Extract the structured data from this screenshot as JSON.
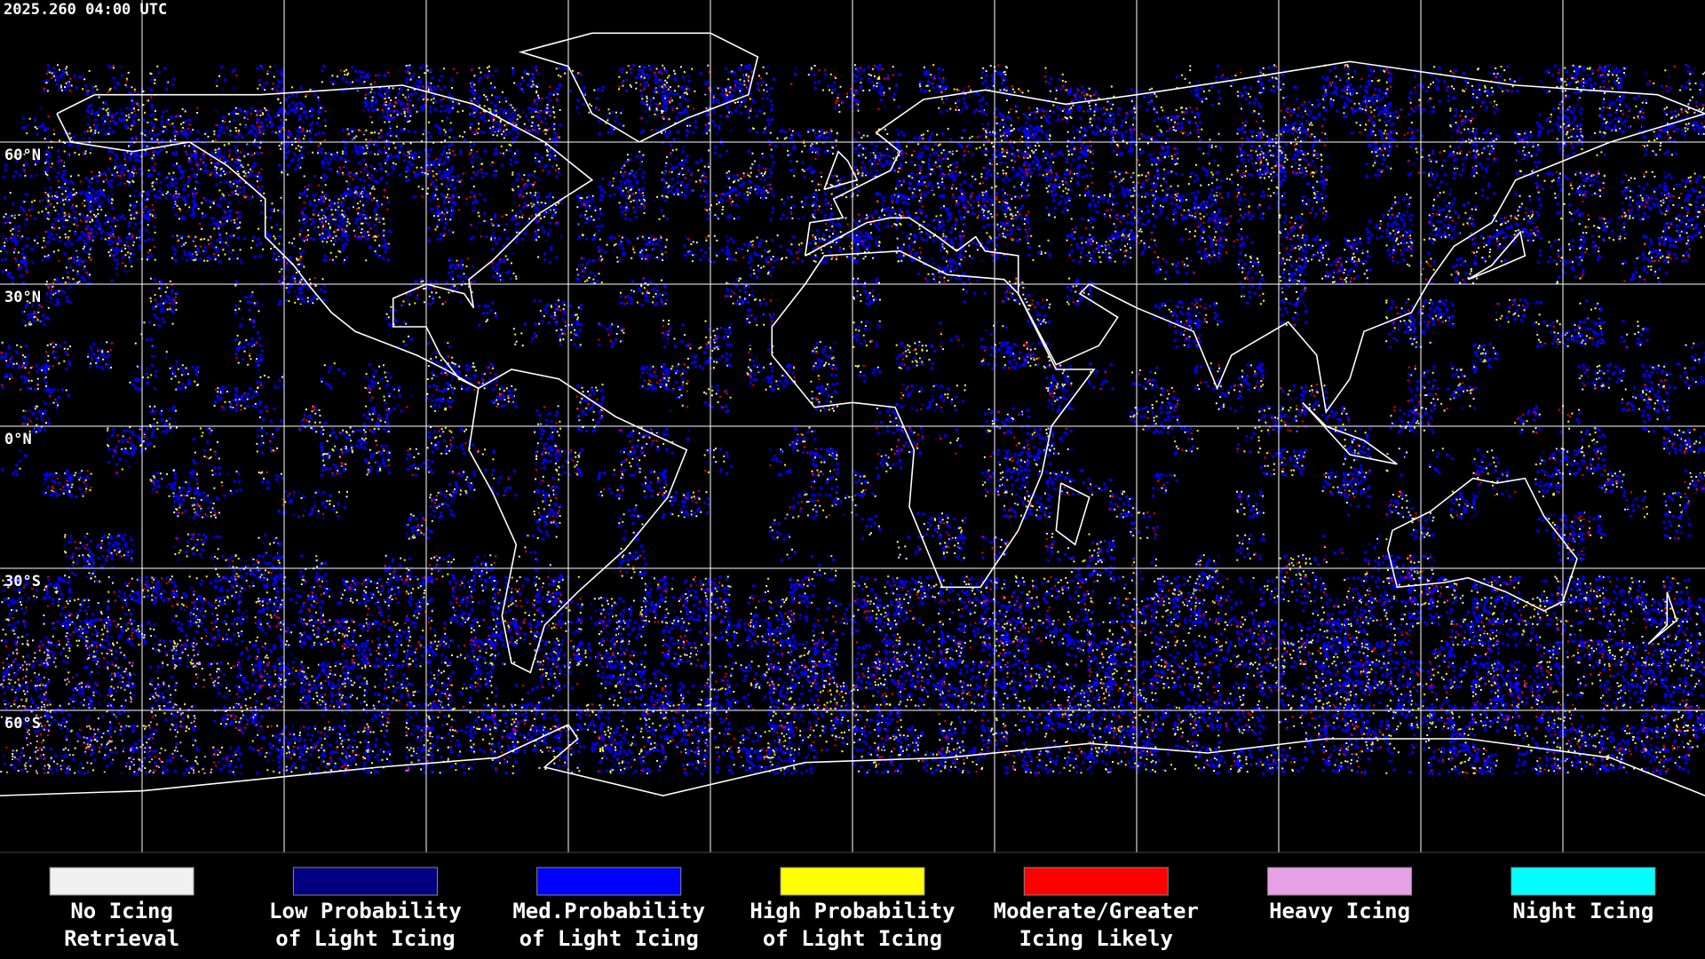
{
  "timestamp": "2025.260 04:00 UTC",
  "latitude_labels": [
    {
      "lat": 60,
      "label": "60°N"
    },
    {
      "lat": 30,
      "label": "30°N"
    },
    {
      "lat": 0,
      "label": "0°N"
    },
    {
      "lat": -30,
      "label": "30°S"
    },
    {
      "lat": -60,
      "label": "60°S"
    }
  ],
  "legend": [
    {
      "color": "#f0f0f0",
      "label": [
        "No Icing",
        "Retrieval"
      ]
    },
    {
      "color": "#000080",
      "label": [
        "Low Probability",
        "of Light Icing"
      ]
    },
    {
      "color": "#0000ff",
      "label": [
        "Med.Probability",
        "of Light Icing"
      ]
    },
    {
      "color": "#ffff00",
      "label": [
        "High Probability",
        "of Light Icing"
      ]
    },
    {
      "color": "#ff0000",
      "label": [
        "Moderate/Greater",
        "Icing Likely"
      ]
    },
    {
      "color": "#e6a0e6",
      "label": [
        "Heavy Icing"
      ]
    },
    {
      "color": "#00ffff",
      "label": [
        "Night Icing"
      ]
    }
  ]
}
